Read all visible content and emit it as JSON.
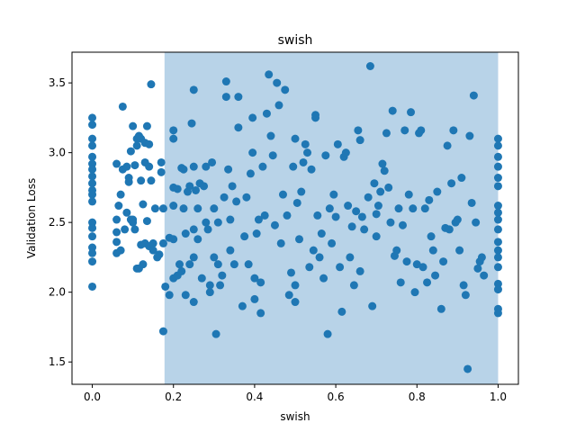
{
  "chart_data": {
    "type": "scatter",
    "title": "swish",
    "xlabel": "swish",
    "ylabel": "Validation Loss",
    "xlim": [
      -0.05,
      1.05
    ],
    "ylim": [
      1.34,
      3.72
    ],
    "xticks": [
      0.0,
      0.2,
      0.4,
      0.6,
      0.8,
      1.0
    ],
    "xtick_labels": [
      "0.0",
      "0.2",
      "0.4",
      "0.6",
      "0.8",
      "1.0"
    ],
    "yticks": [
      1.5,
      2.0,
      2.5,
      3.0,
      3.5
    ],
    "ytick_labels": [
      "1.5",
      "2.0",
      "2.5",
      "3.0",
      "3.5"
    ],
    "grid": false,
    "shaded_region": {
      "x_start": 0.178,
      "x_end": 1.0,
      "color": "#b8d3e8"
    },
    "marker_color": "#1f77b4",
    "series": [
      {
        "values": [
          [
            0.0,
            3.25
          ],
          [
            0.0,
            3.2
          ],
          [
            0.0,
            3.1
          ],
          [
            0.0,
            3.05
          ],
          [
            0.0,
            2.97
          ],
          [
            0.0,
            2.92
          ],
          [
            0.0,
            2.88
          ],
          [
            0.0,
            2.83
          ],
          [
            0.0,
            2.78
          ],
          [
            0.0,
            2.73
          ],
          [
            0.0,
            2.7
          ],
          [
            0.0,
            2.65
          ],
          [
            0.0,
            2.5
          ],
          [
            0.0,
            2.46
          ],
          [
            0.0,
            2.4
          ],
          [
            0.0,
            2.32
          ],
          [
            0.0,
            2.28
          ],
          [
            0.0,
            2.22
          ],
          [
            0.0,
            2.04
          ],
          [
            0.06,
            2.92
          ],
          [
            0.06,
            2.52
          ],
          [
            0.06,
            2.43
          ],
          [
            0.06,
            2.36
          ],
          [
            0.06,
            2.28
          ],
          [
            0.065,
            2.62
          ],
          [
            0.07,
            2.3
          ],
          [
            0.07,
            2.7
          ],
          [
            0.075,
            3.33
          ],
          [
            0.075,
            2.88
          ],
          [
            0.08,
            2.45
          ],
          [
            0.085,
            2.9
          ],
          [
            0.085,
            2.57
          ],
          [
            0.09,
            2.79
          ],
          [
            0.09,
            2.82
          ],
          [
            0.095,
            3.01
          ],
          [
            0.095,
            2.52
          ],
          [
            0.1,
            3.19
          ],
          [
            0.1,
            2.52
          ],
          [
            0.1,
            2.5
          ],
          [
            0.105,
            2.91
          ],
          [
            0.105,
            2.45
          ],
          [
            0.11,
            3.1
          ],
          [
            0.11,
            3.05
          ],
          [
            0.11,
            2.17
          ],
          [
            0.115,
            3.12
          ],
          [
            0.115,
            2.17
          ],
          [
            0.12,
            3.1
          ],
          [
            0.12,
            2.8
          ],
          [
            0.12,
            2.34
          ],
          [
            0.125,
            2.63
          ],
          [
            0.125,
            2.2
          ],
          [
            0.13,
            3.07
          ],
          [
            0.13,
            2.93
          ],
          [
            0.13,
            2.35
          ],
          [
            0.135,
            3.19
          ],
          [
            0.135,
            2.51
          ],
          [
            0.14,
            3.06
          ],
          [
            0.14,
            2.9
          ],
          [
            0.14,
            2.33
          ],
          [
            0.145,
            3.49
          ],
          [
            0.145,
            2.8
          ],
          [
            0.15,
            2.35
          ],
          [
            0.15,
            2.3
          ],
          [
            0.155,
            2.6
          ],
          [
            0.16,
            2.25
          ],
          [
            0.165,
            2.27
          ],
          [
            0.17,
            2.93
          ],
          [
            0.17,
            2.86
          ],
          [
            0.175,
            2.6
          ],
          [
            0.175,
            2.35
          ],
          [
            0.175,
            1.72
          ],
          [
            0.18,
            2.04
          ],
          [
            0.19,
            1.98
          ],
          [
            0.19,
            2.39
          ],
          [
            0.2,
            2.62
          ],
          [
            0.2,
            3.16
          ],
          [
            0.2,
            3.1
          ],
          [
            0.2,
            2.75
          ],
          [
            0.2,
            2.38
          ],
          [
            0.2,
            2.1
          ],
          [
            0.21,
            2.12
          ],
          [
            0.21,
            2.74
          ],
          [
            0.215,
            2.2
          ],
          [
            0.22,
            2.15
          ],
          [
            0.22,
            2.89
          ],
          [
            0.225,
            2.88
          ],
          [
            0.225,
            2.6
          ],
          [
            0.23,
            2.42
          ],
          [
            0.23,
            1.98
          ],
          [
            0.235,
            2.72
          ],
          [
            0.24,
            2.2
          ],
          [
            0.24,
            2.76
          ],
          [
            0.245,
            3.21
          ],
          [
            0.25,
            3.45
          ],
          [
            0.25,
            2.9
          ],
          [
            0.25,
            2.45
          ],
          [
            0.25,
            2.25
          ],
          [
            0.25,
            1.93
          ],
          [
            0.255,
            2.73
          ],
          [
            0.26,
            2.6
          ],
          [
            0.26,
            2.38
          ],
          [
            0.265,
            2.78
          ],
          [
            0.27,
            2.1
          ],
          [
            0.275,
            2.76
          ],
          [
            0.28,
            2.9
          ],
          [
            0.28,
            2.5
          ],
          [
            0.285,
            2.45
          ],
          [
            0.29,
            2.0
          ],
          [
            0.29,
            2.05
          ],
          [
            0.295,
            2.93
          ],
          [
            0.3,
            2.6
          ],
          [
            0.3,
            2.25
          ],
          [
            0.305,
            1.7
          ],
          [
            0.31,
            2.5
          ],
          [
            0.31,
            2.2
          ],
          [
            0.315,
            2.05
          ],
          [
            0.32,
            2.12
          ],
          [
            0.325,
            2.68
          ],
          [
            0.33,
            3.51
          ],
          [
            0.33,
            3.4
          ],
          [
            0.335,
            2.88
          ],
          [
            0.34,
            2.52
          ],
          [
            0.34,
            2.3
          ],
          [
            0.345,
            2.76
          ],
          [
            0.35,
            2.2
          ],
          [
            0.355,
            2.65
          ],
          [
            0.36,
            3.4
          ],
          [
            0.36,
            3.18
          ],
          [
            0.37,
            1.9
          ],
          [
            0.375,
            2.4
          ],
          [
            0.38,
            2.68
          ],
          [
            0.385,
            2.2
          ],
          [
            0.39,
            2.85
          ],
          [
            0.395,
            3.25
          ],
          [
            0.395,
            3.0
          ],
          [
            0.4,
            2.1
          ],
          [
            0.4,
            1.95
          ],
          [
            0.405,
            2.42
          ],
          [
            0.41,
            2.52
          ],
          [
            0.415,
            2.07
          ],
          [
            0.415,
            1.85
          ],
          [
            0.42,
            2.9
          ],
          [
            0.425,
            2.55
          ],
          [
            0.43,
            3.28
          ],
          [
            0.435,
            3.56
          ],
          [
            0.44,
            3.12
          ],
          [
            0.445,
            2.98
          ],
          [
            0.45,
            2.48
          ],
          [
            0.455,
            3.5
          ],
          [
            0.46,
            3.34
          ],
          [
            0.465,
            2.35
          ],
          [
            0.47,
            2.7
          ],
          [
            0.475,
            3.45
          ],
          [
            0.48,
            2.55
          ],
          [
            0.485,
            1.98
          ],
          [
            0.49,
            2.14
          ],
          [
            0.495,
            2.9
          ],
          [
            0.5,
            3.1
          ],
          [
            0.5,
            2.05
          ],
          [
            0.5,
            1.93
          ],
          [
            0.505,
            2.64
          ],
          [
            0.51,
            2.38
          ],
          [
            0.515,
            2.72
          ],
          [
            0.52,
            2.93
          ],
          [
            0.525,
            3.06
          ],
          [
            0.53,
            3.0
          ],
          [
            0.535,
            2.18
          ],
          [
            0.54,
            2.88
          ],
          [
            0.545,
            2.3
          ],
          [
            0.55,
            3.25
          ],
          [
            0.55,
            3.27
          ],
          [
            0.555,
            2.55
          ],
          [
            0.56,
            2.25
          ],
          [
            0.565,
            2.42
          ],
          [
            0.57,
            2.1
          ],
          [
            0.575,
            2.98
          ],
          [
            0.58,
            1.7
          ],
          [
            0.585,
            2.6
          ],
          [
            0.59,
            2.35
          ],
          [
            0.595,
            2.7
          ],
          [
            0.6,
            2.54
          ],
          [
            0.605,
            3.06
          ],
          [
            0.61,
            2.18
          ],
          [
            0.615,
            1.86
          ],
          [
            0.62,
            2.97
          ],
          [
            0.625,
            3.0
          ],
          [
            0.63,
            2.62
          ],
          [
            0.635,
            2.25
          ],
          [
            0.64,
            2.47
          ],
          [
            0.645,
            2.05
          ],
          [
            0.65,
            2.58
          ],
          [
            0.655,
            3.16
          ],
          [
            0.66,
            3.09
          ],
          [
            0.66,
            2.15
          ],
          [
            0.665,
            2.54
          ],
          [
            0.67,
            2.45
          ],
          [
            0.68,
            2.68
          ],
          [
            0.685,
            3.62
          ],
          [
            0.69,
            1.9
          ],
          [
            0.695,
            2.78
          ],
          [
            0.7,
            2.56
          ],
          [
            0.7,
            2.4
          ],
          [
            0.705,
            2.62
          ],
          [
            0.71,
            2.72
          ],
          [
            0.715,
            2.92
          ],
          [
            0.72,
            2.87
          ],
          [
            0.725,
            3.14
          ],
          [
            0.73,
            2.75
          ],
          [
            0.735,
            2.5
          ],
          [
            0.74,
            3.3
          ],
          [
            0.745,
            2.26
          ],
          [
            0.75,
            2.3
          ],
          [
            0.755,
            2.6
          ],
          [
            0.76,
            2.07
          ],
          [
            0.765,
            2.48
          ],
          [
            0.77,
            3.16
          ],
          [
            0.775,
            2.22
          ],
          [
            0.78,
            2.7
          ],
          [
            0.785,
            3.29
          ],
          [
            0.79,
            2.6
          ],
          [
            0.795,
            2.0
          ],
          [
            0.8,
            2.2
          ],
          [
            0.805,
            3.14
          ],
          [
            0.81,
            3.16
          ],
          [
            0.815,
            2.18
          ],
          [
            0.82,
            2.6
          ],
          [
            0.825,
            2.07
          ],
          [
            0.83,
            2.66
          ],
          [
            0.835,
            2.4
          ],
          [
            0.84,
            2.3
          ],
          [
            0.845,
            2.12
          ],
          [
            0.85,
            2.72
          ],
          [
            0.86,
            1.88
          ],
          [
            0.865,
            2.22
          ],
          [
            0.87,
            2.46
          ],
          [
            0.875,
            3.05
          ],
          [
            0.88,
            2.45
          ],
          [
            0.885,
            2.78
          ],
          [
            0.89,
            3.16
          ],
          [
            0.895,
            2.5
          ],
          [
            0.9,
            2.52
          ],
          [
            0.905,
            2.3
          ],
          [
            0.91,
            2.82
          ],
          [
            0.915,
            2.05
          ],
          [
            0.92,
            1.98
          ],
          [
            0.925,
            1.45
          ],
          [
            0.93,
            3.12
          ],
          [
            0.935,
            2.64
          ],
          [
            0.94,
            3.41
          ],
          [
            0.945,
            2.5
          ],
          [
            0.95,
            2.17
          ],
          [
            0.955,
            2.22
          ],
          [
            0.96,
            2.25
          ],
          [
            0.965,
            2.12
          ],
          [
            1.0,
            3.1
          ],
          [
            1.0,
            3.05
          ],
          [
            1.0,
            2.97
          ],
          [
            1.0,
            2.9
          ],
          [
            1.0,
            2.82
          ],
          [
            1.0,
            2.76
          ],
          [
            1.0,
            2.62
          ],
          [
            1.0,
            2.57
          ],
          [
            1.0,
            2.52
          ],
          [
            1.0,
            2.45
          ],
          [
            1.0,
            2.36
          ],
          [
            1.0,
            2.3
          ],
          [
            1.0,
            2.25
          ],
          [
            1.0,
            2.18
          ],
          [
            1.0,
            2.06
          ],
          [
            1.0,
            2.02
          ],
          [
            1.0,
            1.88
          ],
          [
            1.0,
            1.85
          ]
        ]
      }
    ]
  }
}
